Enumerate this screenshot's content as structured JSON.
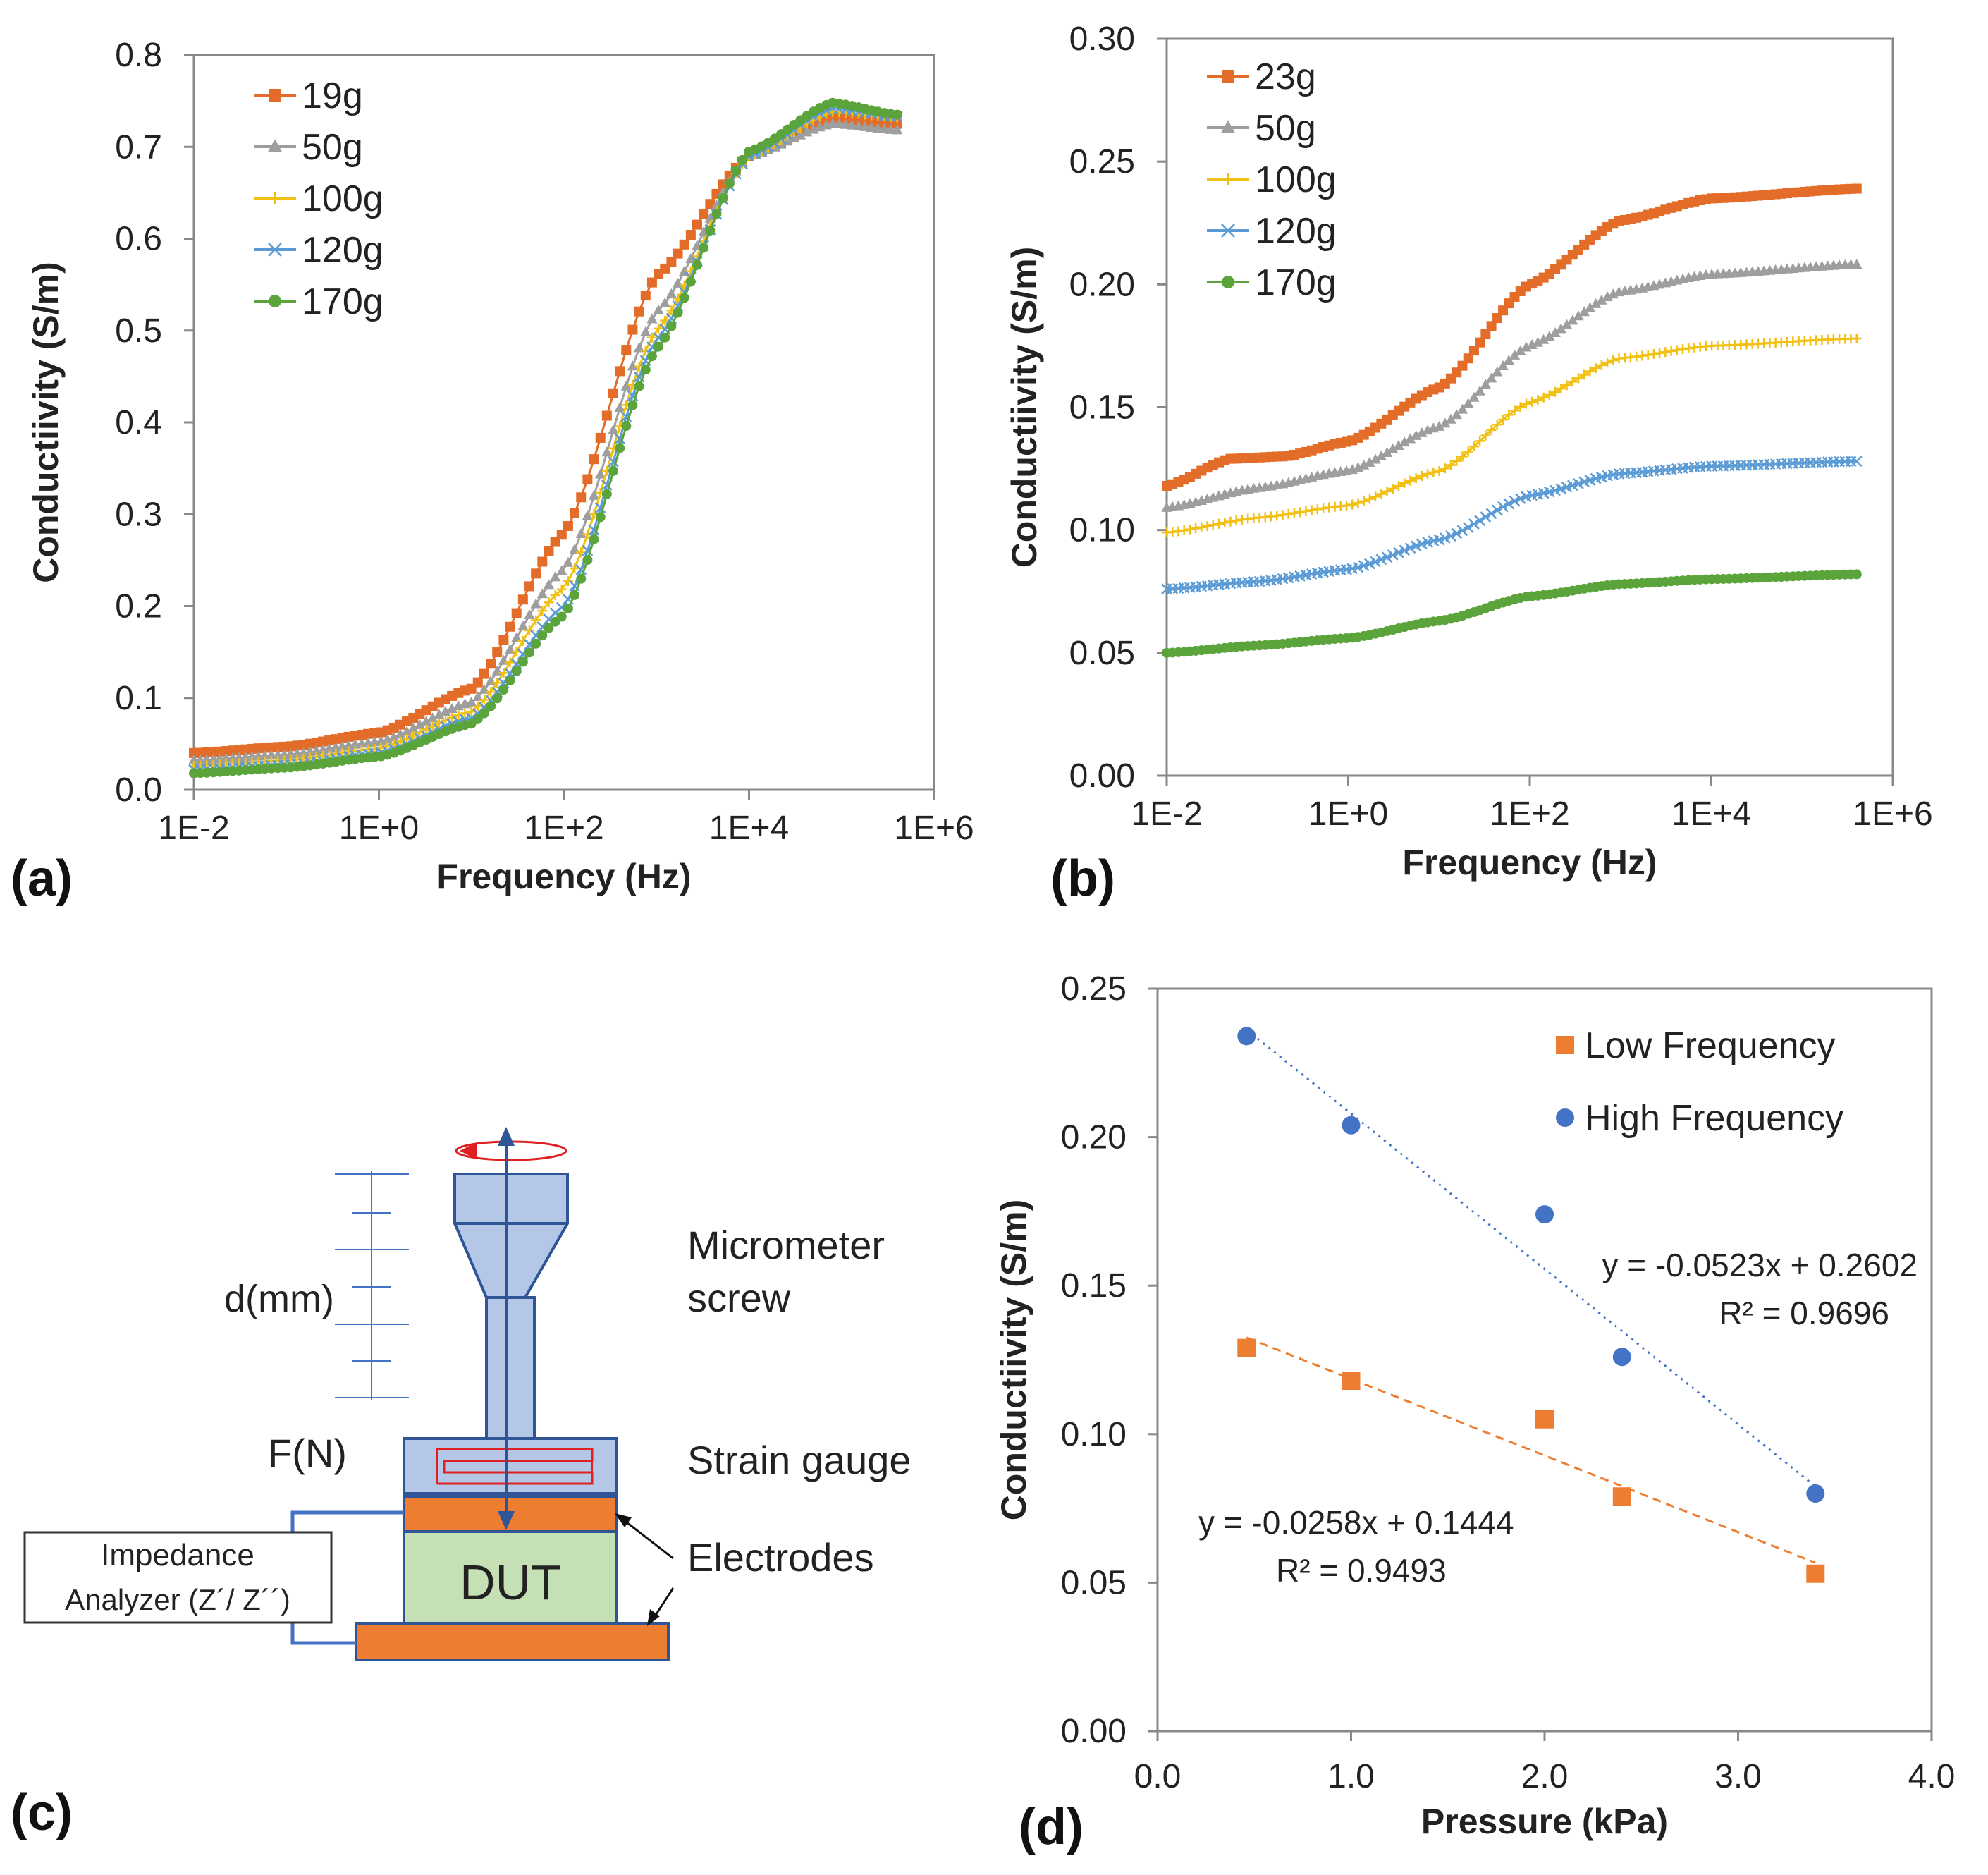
{
  "chart_data": [
    {
      "panel": "a",
      "type": "line",
      "x_scale": "log",
      "xlabel": "Frequency (Hz)",
      "ylabel": "Conductiivity (S/m)",
      "xlim": [
        0.01,
        1000000
      ],
      "ylim": [
        0,
        0.8
      ],
      "x_tick_labels": [
        "1E-2",
        "1E+0",
        "1E+2",
        "1E+4",
        "1E+6"
      ],
      "y_tick_labels": [
        "0.0",
        "0.1",
        "0.2",
        "0.3",
        "0.4",
        "0.5",
        "0.6",
        "0.7",
        "0.8"
      ],
      "series": [
        {
          "name": "19g",
          "color": "#E36C28",
          "marker": "square",
          "points": [
            [
              0.01,
              0.04
            ],
            [
              0.1,
              0.047
            ],
            [
              1,
              0.062
            ],
            [
              10,
              0.11
            ],
            [
              100,
              0.28
            ],
            [
              1000,
              0.56
            ],
            [
              10000,
              0.69
            ],
            [
              80000,
              0.732
            ],
            [
              400000,
              0.725
            ]
          ]
        },
        {
          "name": "50g",
          "color": "#9E9E9E",
          "marker": "triangle",
          "points": [
            [
              0.01,
              0.032
            ],
            [
              0.1,
              0.038
            ],
            [
              1,
              0.052
            ],
            [
              10,
              0.095
            ],
            [
              100,
              0.24
            ],
            [
              1000,
              0.52
            ],
            [
              10000,
              0.69
            ],
            [
              80000,
              0.725
            ],
            [
              400000,
              0.718
            ]
          ]
        },
        {
          "name": "100g",
          "color": "#F2C012",
          "marker": "cross",
          "points": [
            [
              0.01,
              0.026
            ],
            [
              0.1,
              0.032
            ],
            [
              1,
              0.045
            ],
            [
              10,
              0.085
            ],
            [
              100,
              0.22
            ],
            [
              1000,
              0.5
            ],
            [
              10000,
              0.69
            ],
            [
              80000,
              0.738
            ],
            [
              400000,
              0.732
            ]
          ]
        },
        {
          "name": "120g",
          "color": "#5B9BD5",
          "marker": "x",
          "points": [
            [
              0.01,
              0.022
            ],
            [
              0.1,
              0.027
            ],
            [
              1,
              0.04
            ],
            [
              10,
              0.078
            ],
            [
              100,
              0.2
            ],
            [
              1000,
              0.49
            ],
            [
              10000,
              0.69
            ],
            [
              80000,
              0.742
            ],
            [
              400000,
              0.733
            ]
          ]
        },
        {
          "name": "170g",
          "color": "#5BA33B",
          "marker": "circle",
          "points": [
            [
              0.01,
              0.018
            ],
            [
              0.1,
              0.024
            ],
            [
              1,
              0.036
            ],
            [
              10,
              0.072
            ],
            [
              100,
              0.19
            ],
            [
              1000,
              0.48
            ],
            [
              10000,
              0.695
            ],
            [
              80000,
              0.748
            ],
            [
              400000,
              0.735
            ]
          ]
        }
      ]
    },
    {
      "panel": "b",
      "type": "line",
      "x_scale": "log",
      "xlabel": "Frequency (Hz)",
      "ylabel": "Conductiivity (S/m)",
      "xlim": [
        0.01,
        1000000
      ],
      "ylim": [
        0,
        0.3
      ],
      "x_tick_labels": [
        "1E-2",
        "1E+0",
        "1E+2",
        "1E+4",
        "1E+6"
      ],
      "y_tick_labels": [
        "0.00",
        "0.05",
        "0.10",
        "0.15",
        "0.20",
        "0.25",
        "0.30"
      ],
      "series": [
        {
          "name": "23g",
          "color": "#E36C28",
          "marker": "square",
          "points": [
            [
              0.01,
              0.118
            ],
            [
              0.05,
              0.129
            ],
            [
              0.2,
              0.13
            ],
            [
              1,
              0.136
            ],
            [
              10,
              0.158
            ],
            [
              100,
              0.2
            ],
            [
              1000,
              0.226
            ],
            [
              10000,
              0.235
            ],
            [
              400000,
              0.239
            ]
          ]
        },
        {
          "name": "50g",
          "color": "#9E9E9E",
          "marker": "triangle",
          "points": [
            [
              0.01,
              0.109
            ],
            [
              0.1,
              0.117
            ],
            [
              1,
              0.124
            ],
            [
              10,
              0.142
            ],
            [
              100,
              0.175
            ],
            [
              1000,
              0.197
            ],
            [
              10000,
              0.204
            ],
            [
              400000,
              0.208
            ]
          ]
        },
        {
          "name": "100g",
          "color": "#F2C012",
          "marker": "cross",
          "points": [
            [
              0.01,
              0.099
            ],
            [
              0.1,
              0.105
            ],
            [
              1,
              0.11
            ],
            [
              10,
              0.124
            ],
            [
              100,
              0.152
            ],
            [
              1000,
              0.17
            ],
            [
              10000,
              0.175
            ],
            [
              400000,
              0.178
            ]
          ]
        },
        {
          "name": "120g",
          "color": "#5B9BD5",
          "marker": "x",
          "points": [
            [
              0.01,
              0.076
            ],
            [
              0.1,
              0.079
            ],
            [
              1,
              0.084
            ],
            [
              10,
              0.096
            ],
            [
              100,
              0.114
            ],
            [
              1000,
              0.123
            ],
            [
              10000,
              0.126
            ],
            [
              400000,
              0.128
            ]
          ]
        },
        {
          "name": "170g",
          "color": "#5BA33B",
          "marker": "circle",
          "points": [
            [
              0.01,
              0.05
            ],
            [
              0.1,
              0.053
            ],
            [
              1,
              0.056
            ],
            [
              10,
              0.063
            ],
            [
              100,
              0.073
            ],
            [
              1000,
              0.078
            ],
            [
              10000,
              0.08
            ],
            [
              400000,
              0.082
            ]
          ]
        }
      ]
    },
    {
      "panel": "d",
      "type": "scatter",
      "xlabel": "Pressure (kPa)",
      "ylabel": "Conductiivity (S/m)",
      "xlim": [
        0,
        4.0
      ],
      "ylim": [
        0,
        0.25
      ],
      "x_tick_labels": [
        "0.0",
        "1.0",
        "2.0",
        "3.0",
        "4.0"
      ],
      "y_tick_labels": [
        "0.00",
        "0.05",
        "0.10",
        "0.15",
        "0.20",
        "0.25"
      ],
      "series": [
        {
          "name": "Low Frequency",
          "color": "#ED7D31",
          "marker": "square",
          "x": [
            0.46,
            1.0,
            2.0,
            2.4,
            3.4
          ],
          "y": [
            0.129,
            0.118,
            0.105,
            0.079,
            0.053
          ],
          "trend": {
            "slope": -0.0258,
            "intercept": 0.1444,
            "style": "dashed",
            "equation": "y = -0.0258x + 0.1444",
            "r2": "R² = 0.9493"
          }
        },
        {
          "name": "High Frequency",
          "color": "#4472C4",
          "marker": "circle",
          "x": [
            0.46,
            1.0,
            2.0,
            2.4,
            3.4
          ],
          "y": [
            0.234,
            0.204,
            0.174,
            0.126,
            0.08
          ],
          "trend": {
            "slope": -0.0523,
            "intercept": 0.2602,
            "style": "dotted",
            "equation": "y = -0.0523x + 0.2602",
            "r2": "R² = 0.9696"
          }
        }
      ]
    }
  ],
  "panel_labels": {
    "a": "(a)",
    "b": "(b)",
    "c": "(c)",
    "d": "(d)"
  },
  "diagram": {
    "micrometer": "Micrometer",
    "screw": "screw",
    "strain_gauge": "Strain gauge",
    "electrodes": "Electrodes",
    "dut": "DUT",
    "displacement": "d(mm)",
    "force": "F(N)",
    "analyzer_line1": "Impedance",
    "analyzer_line2": "Analyzer (Z´/ Z´´)"
  }
}
